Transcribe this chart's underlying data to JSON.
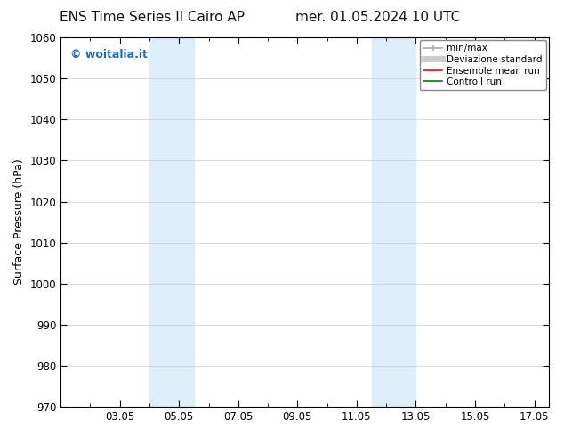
{
  "title_left": "ENS Time Series Il Cairo AP",
  "title_right": "mer. 01.05.2024 10 UTC",
  "ylabel": "Surface Pressure (hPa)",
  "ylim": [
    970,
    1060
  ],
  "yticks": [
    970,
    980,
    990,
    1000,
    1010,
    1020,
    1030,
    1040,
    1050,
    1060
  ],
  "xlim": [
    1.0,
    17.5
  ],
  "xtick_labels": [
    "03.05",
    "05.05",
    "07.05",
    "09.05",
    "11.05",
    "13.05",
    "15.05",
    "17.05"
  ],
  "xtick_positions": [
    3,
    5,
    7,
    9,
    11,
    13,
    15,
    17
  ],
  "shaded_bands": [
    {
      "x_start": 4.0,
      "x_end": 5.5,
      "color": "#dceef9"
    },
    {
      "x_start": 11.5,
      "x_end": 13.0,
      "color": "#dceef9"
    }
  ],
  "watermark_text": "© woitalia.it",
  "watermark_color": "#1a6bbf",
  "background_color": "#ffffff",
  "legend_items": [
    {
      "label": "min/max",
      "color": "#aaaaaa",
      "lw": 1.2,
      "linestyle": "-"
    },
    {
      "label": "Deviazione standard",
      "color": "#cccccc",
      "lw": 5,
      "linestyle": "-"
    },
    {
      "label": "Ensemble mean run",
      "color": "red",
      "lw": 1.2,
      "linestyle": "-"
    },
    {
      "label": "Controll run",
      "color": "green",
      "lw": 1.2,
      "linestyle": "-"
    }
  ],
  "spine_color": "#000000",
  "grid_color": "#cccccc",
  "title_fontsize": 11,
  "tick_fontsize": 8.5,
  "ylabel_fontsize": 9,
  "legend_fontsize": 7.5
}
